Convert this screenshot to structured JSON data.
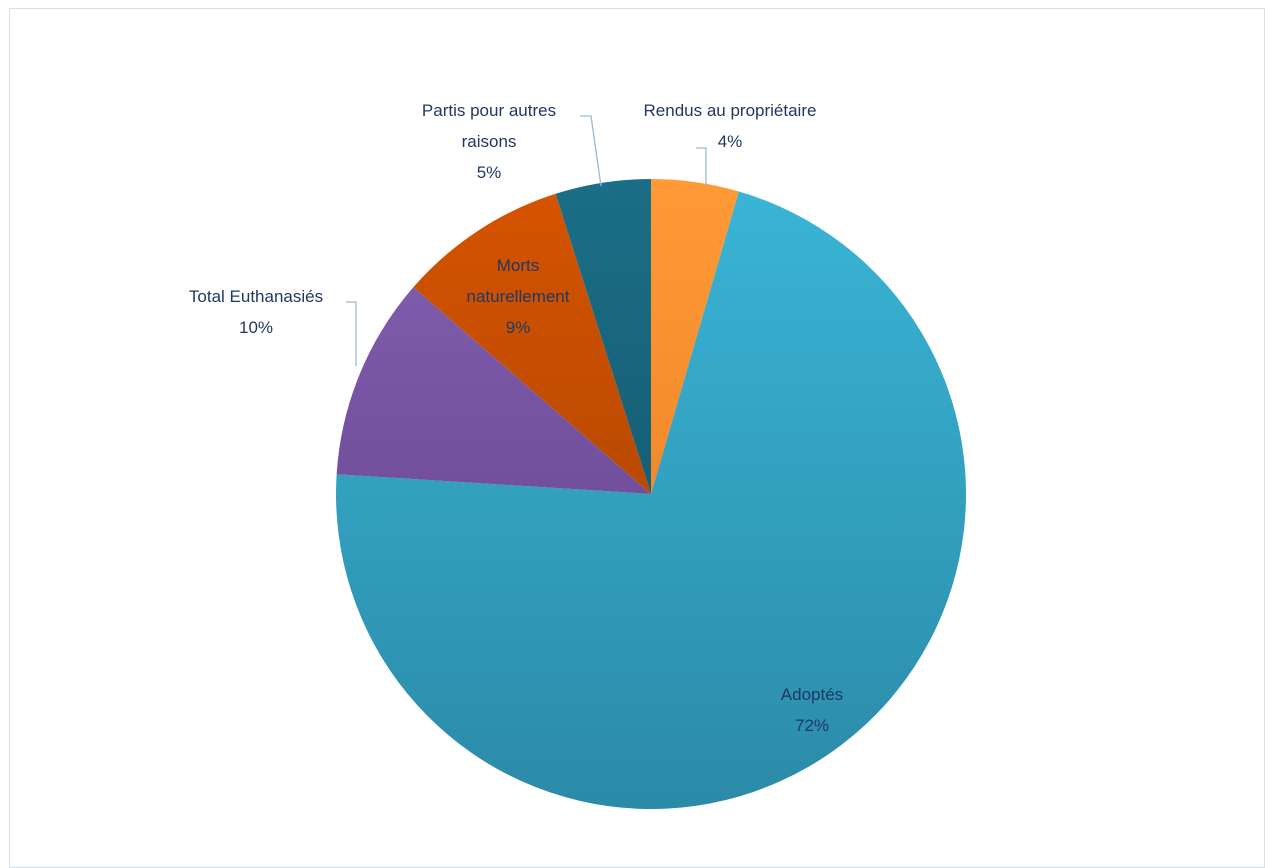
{
  "chart_data": {
    "type": "pie",
    "slices": [
      {
        "label": "Rendus au propriétaire",
        "label_lines": [
          "Rendus au propriétaire"
        ],
        "percent_text": "4%",
        "value": 4.5,
        "color_top": "#ff9a36",
        "color_bottom": "#e5781e",
        "label_style": "outside-right"
      },
      {
        "label": "Adoptés",
        "label_lines": [
          "Adoptés"
        ],
        "percent_text": "72%",
        "value": 71.5,
        "color_top": "#3ab5d6",
        "color_bottom": "#2b8aa8",
        "label_style": "inside"
      },
      {
        "label": "Total Euthanasiés",
        "label_lines": [
          "Total Euthanasiés"
        ],
        "percent_text": "10%",
        "value": 10.4,
        "color_top": "#8460b4",
        "color_bottom": "#5f3f83",
        "label_style": "outside-left"
      },
      {
        "label": "Morts naturellement",
        "label_lines": [
          "Morts",
          "naturellement"
        ],
        "percent_text": "9%",
        "value": 8.7,
        "color_top": "#d65400",
        "color_bottom": "#9e3f06",
        "label_style": "inside"
      },
      {
        "label": "Partis pour autres raisons",
        "label_lines": [
          "Partis pour autres",
          "raisons"
        ],
        "percent_text": "5%",
        "value": 4.9,
        "color_top": "#1b6e87",
        "color_bottom": "#124f63",
        "label_style": "outside-left"
      }
    ],
    "title": "",
    "legend": "none",
    "data_labels": "category name and percentage"
  }
}
